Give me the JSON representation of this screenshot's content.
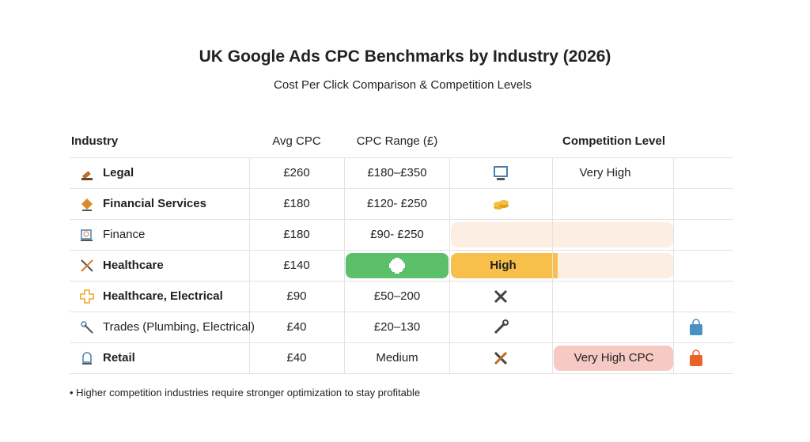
{
  "header": {
    "title": "UK Google Ads CPC Benchmarks by Industry (2026)",
    "subtitle": "Cost Per Click Comparison & Competition Levels"
  },
  "table": {
    "headers": [
      "Industry",
      "Avg CPC",
      "CPC Range (£)",
      "Competition Level"
    ],
    "rows": [
      {
        "industry": "Legal",
        "avg_cpc": "£260",
        "cpc_range": "£180–£350",
        "competition": "Very High"
      },
      {
        "industry": "Financial Services",
        "avg_cpc": "£180",
        "cpc_range": "£120- £250"
      },
      {
        "industry": "Finance",
        "avg_cpc": "£180",
        "cpc_range": "£90- £250"
      },
      {
        "industry": "Healthcare",
        "avg_cpc": "£140",
        "competition": "High"
      },
      {
        "industry": "Healthcare, Electrical",
        "avg_cpc": "£90",
        "cpc_range": "£50–200"
      },
      {
        "industry": "Trades (Plumbing, Electrical)",
        "avg_cpc": "£40",
        "cpc_range": "£20–130"
      },
      {
        "industry": "Retail",
        "avg_cpc": "£40",
        "cpc_range": "Medium",
        "badge": "Very High CPC"
      }
    ]
  },
  "footnote": "Higher competition industries require stronger optimization to stay profitable"
}
